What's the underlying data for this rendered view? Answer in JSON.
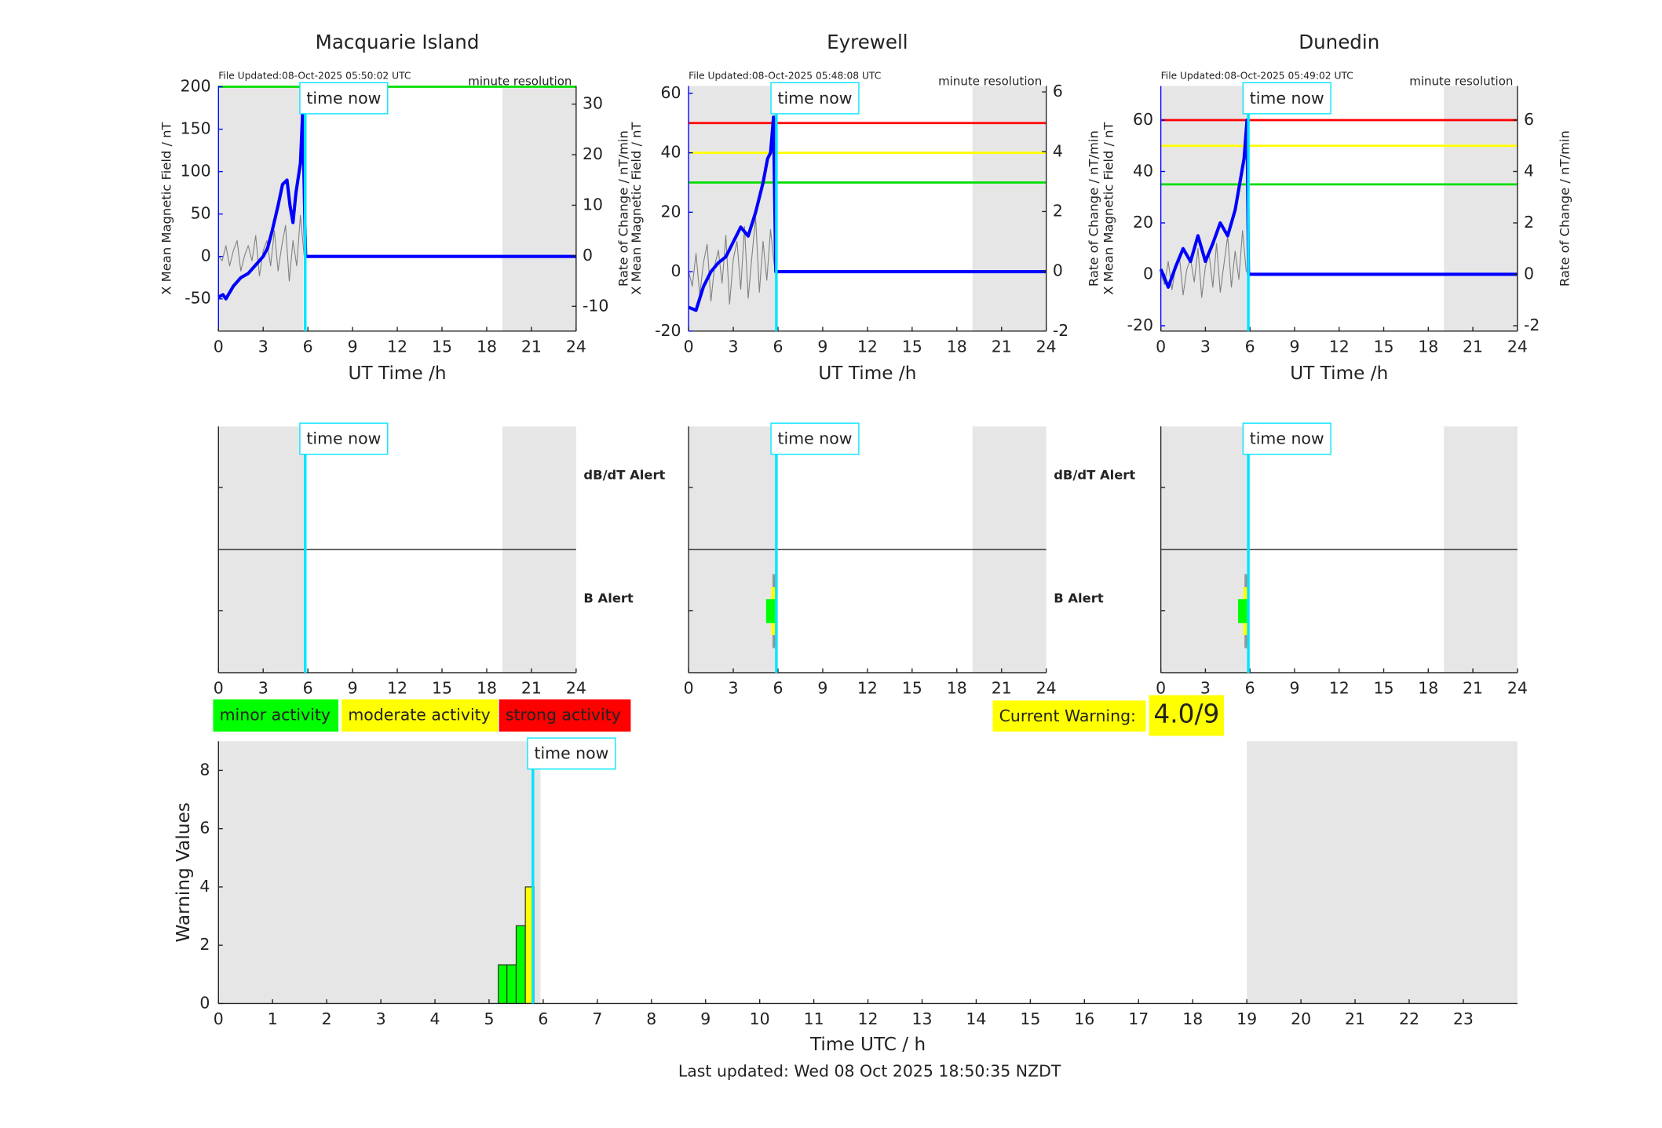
{
  "chart_data": [
    {
      "type": "line",
      "title": "Macquarie Island",
      "file_updated": "File Updated:08-Oct-2025 05:50:02 UTC",
      "resolution": "minute resolution",
      "xlabel": "UT Time /h",
      "ylabel": "X Mean Magnetic Field / nT",
      "y2label": "Rate of Change / nT/min",
      "annotation": "time now",
      "xlim": [
        0,
        24
      ],
      "xticks": [
        0,
        3,
        6,
        9,
        12,
        15,
        18,
        21,
        24
      ],
      "ylim": [
        -88,
        201
      ],
      "yticks": [
        -50,
        0,
        50,
        100,
        150,
        200
      ],
      "y2lim": [
        -14.9,
        33.6
      ],
      "y2ticks": [
        -10,
        0,
        10,
        20,
        30
      ],
      "time_now": 5.82,
      "shaded": [
        [
          0,
          5.7
        ],
        [
          19.05,
          24
        ]
      ],
      "thresholds": [
        {
          "value": 200,
          "color": "#00dd00"
        }
      ],
      "series": [
        {
          "color": "#808080",
          "axis": "y2",
          "x": [
            0,
            0.25,
            0.5,
            0.75,
            1,
            1.25,
            1.5,
            1.75,
            2,
            2.25,
            2.5,
            2.75,
            3,
            3.25,
            3.5,
            3.75,
            4,
            4.25,
            4.5,
            4.75,
            5,
            5.25,
            5.5,
            5.75
          ],
          "values": [
            0,
            -1,
            2,
            -2,
            1,
            3,
            -3,
            0,
            2,
            -1,
            4,
            -4,
            1,
            3,
            -2,
            5,
            -3,
            2,
            6,
            -5,
            3,
            -2,
            8,
            0
          ]
        },
        {
          "color": "#0000ff",
          "axis": "y",
          "x": [
            0,
            0.3,
            0.5,
            1,
            1.5,
            2,
            2.5,
            3,
            3.3,
            3.6,
            4,
            4.3,
            4.6,
            4.8,
            5,
            5.2,
            5.5,
            5.65,
            5.85,
            24
          ],
          "values": [
            -48,
            -45,
            -50,
            -35,
            -25,
            -20,
            -10,
            0,
            10,
            30,
            60,
            85,
            90,
            60,
            40,
            75,
            110,
            170,
            0,
            0
          ]
        }
      ]
    },
    {
      "type": "line",
      "title": "Eyrewell",
      "file_updated": "File Updated:08-Oct-2025 05:48:08 UTC",
      "resolution": "minute resolution",
      "xlabel": "UT Time /h",
      "ylabel": "X Mean Magnetic Field / nT",
      "y2label": "Rate of Change / nT/min",
      "annotation": "time now",
      "xlim": [
        0,
        24
      ],
      "xticks": [
        0,
        3,
        6,
        9,
        12,
        15,
        18,
        21,
        24
      ],
      "ylim": [
        -20,
        62.5
      ],
      "yticks": [
        -20,
        0,
        20,
        40,
        60
      ],
      "y2lim": [
        -2,
        6.2
      ],
      "y2ticks": [
        -2,
        0,
        2,
        4,
        6
      ],
      "time_now": 5.89,
      "shaded": [
        [
          0,
          5.89
        ],
        [
          19.05,
          24
        ]
      ],
      "thresholds": [
        {
          "value": 50,
          "color": "#ff0000"
        },
        {
          "value": 40,
          "color": "#ffff00"
        },
        {
          "value": 30,
          "color": "#00dd00"
        }
      ],
      "series": [
        {
          "color": "#808080",
          "axis": "y2",
          "x": [
            0,
            0.25,
            0.5,
            0.75,
            1,
            1.25,
            1.5,
            1.75,
            2,
            2.25,
            2.5,
            2.75,
            3,
            3.25,
            3.5,
            3.75,
            4,
            4.25,
            4.5,
            4.75,
            5,
            5.25,
            5.5,
            5.75
          ],
          "values": [
            0,
            -0.5,
            0.6,
            -0.8,
            0.3,
            0.9,
            -1,
            0.2,
            0.7,
            -0.4,
            1.2,
            -1.1,
            0.4,
            1,
            -0.6,
            1.5,
            -0.9,
            0.5,
            1.8,
            -0.7,
            1,
            -0.3,
            1.4,
            0.2
          ]
        },
        {
          "color": "#0000ff",
          "axis": "y",
          "x": [
            0,
            0.5,
            1,
            1.5,
            2,
            2.5,
            3,
            3.5,
            4,
            4.5,
            5,
            5.3,
            5.5,
            5.7,
            5.85,
            24
          ],
          "values": [
            -12,
            -13,
            -5,
            0,
            3,
            5,
            10,
            15,
            12,
            20,
            30,
            38,
            40,
            52,
            0,
            0
          ]
        }
      ]
    },
    {
      "type": "line",
      "title": "Dunedin",
      "file_updated": "File Updated:08-Oct-2025 05:49:02 UTC",
      "resolution": "minute resolution",
      "xlabel": "UT Time /h",
      "ylabel": "X Mean Magnetic Field / nT",
      "y2label": "Rate of Change / nT/min",
      "annotation": "time now",
      "xlim": [
        0,
        24
      ],
      "xticks": [
        0,
        3,
        6,
        9,
        12,
        15,
        18,
        21,
        24
      ],
      "ylim": [
        -22.1,
        73.3
      ],
      "yticks": [
        -20,
        0,
        20,
        40,
        60
      ],
      "y2lim": [
        -2.21,
        7.33
      ],
      "y2ticks": [
        -2,
        0,
        2,
        4,
        6
      ],
      "time_now": 5.89,
      "shaded": [
        [
          0,
          5.89
        ],
        [
          19.05,
          24
        ]
      ],
      "thresholds": [
        {
          "value": 60,
          "color": "#ff0000"
        },
        {
          "value": 50,
          "color": "#ffff00"
        },
        {
          "value": 35,
          "color": "#00dd00"
        }
      ],
      "series": [
        {
          "color": "#808080",
          "axis": "y2",
          "x": [
            0,
            0.25,
            0.5,
            0.75,
            1,
            1.25,
            1.5,
            1.75,
            2,
            2.25,
            2.5,
            2.75,
            3,
            3.25,
            3.5,
            3.75,
            4,
            4.25,
            4.5,
            4.75,
            5,
            5.25,
            5.5,
            5.75
          ],
          "values": [
            0,
            -0.4,
            0.5,
            -0.6,
            0.3,
            0.7,
            -0.8,
            0.2,
            0.6,
            -0.3,
            1,
            -0.9,
            0.3,
            0.8,
            -0.5,
            1.2,
            -0.7,
            0.4,
            1.5,
            -0.5,
            0.9,
            -0.2,
            1.7,
            0.1
          ]
        },
        {
          "color": "#0000ff",
          "axis": "y",
          "x": [
            0,
            0.5,
            1,
            1.5,
            2,
            2.5,
            3,
            3.5,
            4,
            4.5,
            5,
            5.3,
            5.6,
            5.8,
            5.9,
            24
          ],
          "values": [
            2,
            -5,
            3,
            10,
            5,
            15,
            5,
            12,
            20,
            15,
            25,
            35,
            45,
            60,
            0,
            0
          ]
        }
      ]
    },
    {
      "type": "alert",
      "annotation": "time now",
      "upper_label": "dB/dT Alert",
      "lower_label": "B Alert",
      "xlim": [
        0,
        24
      ],
      "xticks": [
        0,
        3,
        6,
        9,
        12,
        15,
        18,
        21,
        24
      ],
      "time_now": 5.82,
      "shaded": [
        [
          0,
          5.82
        ],
        [
          19.05,
          24
        ]
      ]
    },
    {
      "type": "alert",
      "annotation": "time now",
      "upper_label": "dB/dT Alert",
      "lower_label": "B Alert",
      "xlim": [
        0,
        24
      ],
      "xticks": [
        0,
        3,
        6,
        9,
        12,
        15,
        18,
        21,
        24
      ],
      "time_now": 5.89,
      "shaded": [
        [
          0,
          5.89
        ],
        [
          19.05,
          24
        ]
      ],
      "b_alert": {
        "intervals": [
          [
            5.2,
            5.85
          ],
          [
            5.55,
            5.85
          ],
          [
            5.7,
            5.85
          ]
        ],
        "levels": [
          1,
          2,
          3
        ],
        "colors": [
          "#00ff00",
          "#ffff00",
          "#b03a3a"
        ]
      }
    },
    {
      "type": "alert",
      "annotation": "time now",
      "xlim": [
        0,
        24
      ],
      "xticks": [
        0,
        3,
        6,
        9,
        12,
        15,
        18,
        21,
        24
      ],
      "time_now": 5.89,
      "shaded": [
        [
          0,
          5.89
        ],
        [
          19.05,
          24
        ]
      ],
      "b_alert": {
        "intervals": [
          [
            5.2,
            5.85
          ],
          [
            5.55,
            5.85
          ],
          [
            5.7,
            5.85
          ]
        ],
        "levels": [
          1,
          2,
          3
        ],
        "colors": [
          "#00ff00",
          "#ffff00",
          "#b03a3a"
        ]
      }
    },
    {
      "type": "histogram",
      "xlabel": "Time UTC / h",
      "ylabel": "Warning Values",
      "annotation": "time now",
      "xlim": [
        0,
        24
      ],
      "xticks": [
        0,
        1,
        2,
        3,
        4,
        5,
        6,
        7,
        8,
        9,
        10,
        11,
        12,
        13,
        14,
        15,
        16,
        17,
        18,
        19,
        20,
        21,
        22,
        23
      ],
      "ylim": [
        0,
        9
      ],
      "yticks": [
        0,
        2,
        4,
        6,
        8
      ],
      "time_now": 5.81,
      "shaded": [
        [
          0,
          5.95
        ],
        [
          19,
          24
        ]
      ],
      "bins": [
        5.17,
        5.33,
        5.5,
        5.67,
        5.83
      ],
      "values": [
        1.33,
        1.33,
        2.67,
        4.0
      ],
      "colors": [
        "#00ff00",
        "#00ff00",
        "#00ff00",
        "#ffff00"
      ]
    }
  ],
  "legend": [
    {
      "label": "minor activity",
      "color": "#00ff00"
    },
    {
      "label": "moderate activity",
      "color": "#ffff00"
    },
    {
      "label": "strong activity",
      "color": "#ff0000"
    }
  ],
  "current_warning": {
    "label": "Current Warning:",
    "value": "4.0/9",
    "color": "#ffff00"
  },
  "footer": "Last updated: Wed 08 Oct 2025 18:50:35 NZDT"
}
